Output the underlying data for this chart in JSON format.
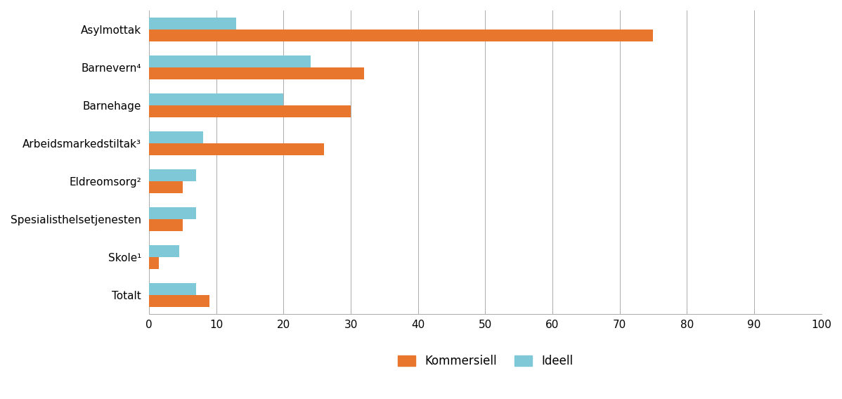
{
  "categories": [
    "Asylmottak",
    "Barnevern⁴",
    "Barnehage",
    "Arbeidsmarkedstiltak³",
    "Eldreomsorg²",
    "Spesialisthelsetjenesten",
    "Skole¹",
    "Totalt"
  ],
  "kommersiell": [
    75,
    32,
    30,
    26,
    5,
    5,
    1.5,
    9
  ],
  "ideell": [
    13,
    24,
    20,
    8,
    7,
    7,
    4.5,
    7
  ],
  "color_kommersiell": "#E8762C",
  "color_ideell": "#7EC8D8",
  "xlim": [
    0,
    100
  ],
  "xticks": [
    0,
    10,
    20,
    30,
    40,
    50,
    60,
    70,
    80,
    90,
    100
  ],
  "legend_kommersiell": "Kommersiell",
  "legend_ideell": "Ideell",
  "bar_height": 0.32,
  "background_color": "#FFFFFF",
  "grid_color": "#AAAAAA",
  "figsize": [
    11.98,
    5.68
  ]
}
